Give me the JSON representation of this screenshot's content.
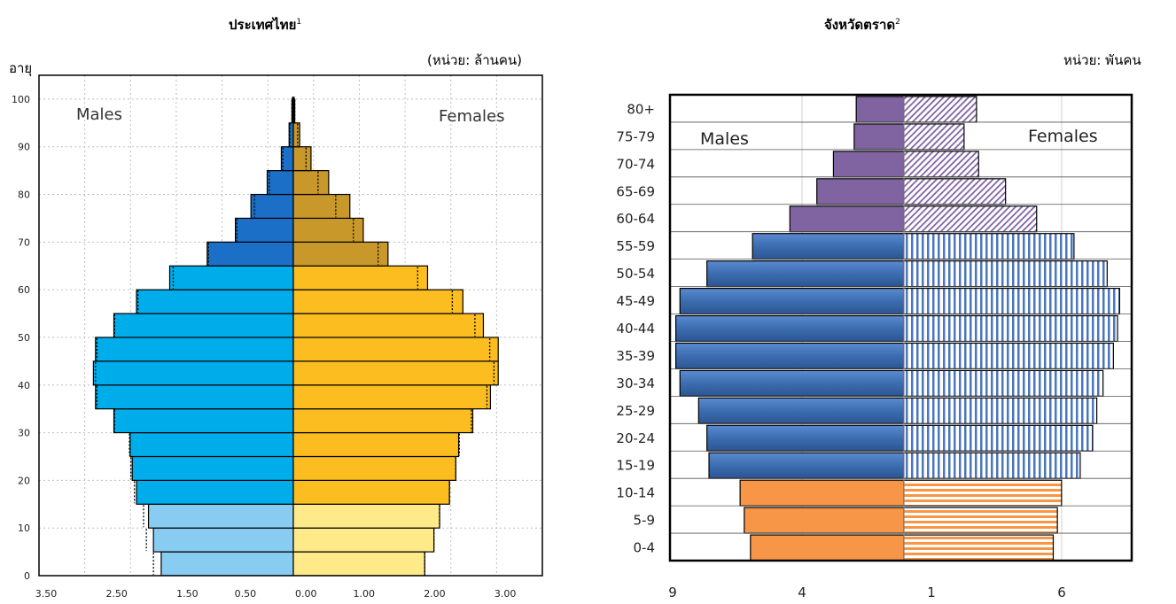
{
  "chart_data": [
    {
      "type": "bar",
      "orientation": "horizontal-pyramid",
      "title": "ประเทศไทย",
      "title_sup": "1",
      "unit_label": "(หน่วย: ล้านคน)",
      "ylabel": "อายุ",
      "y_ticks": [
        "0",
        "10",
        "20",
        "30",
        "40",
        "50",
        "60",
        "70",
        "80",
        "90",
        "100"
      ],
      "x_tick_labels": [
        "3.50",
        "2.50",
        "1.50",
        "0.50",
        "0.00",
        "1.00",
        "2.00",
        "3.00"
      ],
      "left_label": "Males",
      "right_label": "Females",
      "grid": true,
      "bin_width_years": 5,
      "age_bins_start": [
        0,
        5,
        10,
        15,
        20,
        25,
        30,
        35,
        40,
        45,
        50,
        55,
        60,
        65,
        70,
        75,
        80,
        85,
        90,
        95
      ],
      "males": [
        1.87,
        1.98,
        2.05,
        2.22,
        2.28,
        2.31,
        2.54,
        2.8,
        2.83,
        2.8,
        2.54,
        2.22,
        1.75,
        1.22,
        0.82,
        0.6,
        0.37,
        0.17,
        0.06,
        0.02
      ],
      "females": [
        1.86,
        1.99,
        2.07,
        2.21,
        2.3,
        2.34,
        2.54,
        2.79,
        2.9,
        2.9,
        2.69,
        2.4,
        1.9,
        1.34,
        0.99,
        0.8,
        0.5,
        0.25,
        0.09,
        0.02
      ],
      "males_dotted": [
        1.98,
        2.08,
        2.12,
        2.25,
        2.3,
        2.32,
        2.53,
        2.78,
        2.8,
        2.78,
        2.53,
        2.2,
        1.7,
        1.2,
        0.8,
        0.55,
        0.34,
        0.15,
        0.05,
        0.02
      ],
      "females_dotted": [
        1.86,
        1.99,
        2.07,
        2.21,
        2.3,
        2.35,
        2.52,
        2.74,
        2.84,
        2.78,
        2.57,
        2.25,
        1.76,
        1.2,
        0.85,
        0.6,
        0.35,
        0.18,
        0.06,
        0.02
      ],
      "colors": {
        "males": [
          "#88ccf2",
          "#88ccf2",
          "#88ccf2",
          "#00adeb",
          "#00adeb",
          "#00adeb",
          "#00adeb",
          "#00adeb",
          "#00adeb",
          "#00adeb",
          "#00adeb",
          "#00adeb",
          "#00adeb",
          "#1c6fc6",
          "#1c6fc6",
          "#1c6fc6",
          "#1c6fc6",
          "#1c6fc6",
          "#1c6fc6",
          "#1c6fc6"
        ],
        "females": [
          "#ffea8a",
          "#ffea8a",
          "#ffea8a",
          "#fbbd20",
          "#fbbd20",
          "#fbbd20",
          "#fbbd20",
          "#fbbd20",
          "#fbbd20",
          "#fbbd20",
          "#fbbd20",
          "#fbbd20",
          "#fbbd20",
          "#c9982a",
          "#c9982a",
          "#c9982a",
          "#c9982a",
          "#c9982a",
          "#c9982a",
          "#c9982a"
        ]
      }
    },
    {
      "type": "bar",
      "orientation": "horizontal-pyramid",
      "title": "จังหวัดตราด",
      "title_sup": "2",
      "unit_label": "หน่วย: พันคน",
      "categories": [
        "0-4",
        "5-9",
        "10-14",
        "15-19",
        "20-24",
        "25-29",
        "30-34",
        "35-39",
        "40-44",
        "45-49",
        "50-54",
        "55-59",
        "60-64",
        "65-69",
        "70-74",
        "75-79",
        "80+"
      ],
      "x_tick_labels": [
        "9",
        "4",
        "1",
        "6"
      ],
      "left_label": "Males",
      "right_label": "Females",
      "grid": true,
      "males": [
        7.4,
        7.7,
        7.9,
        9.4,
        9.5,
        9.9,
        10.8,
        11.0,
        11.0,
        10.8,
        9.5,
        7.3,
        5.5,
        4.2,
        3.4,
        2.4,
        2.3
      ],
      "females": [
        7.2,
        7.4,
        7.6,
        8.5,
        9.1,
        9.3,
        9.6,
        10.1,
        10.3,
        10.4,
        9.8,
        8.2,
        6.4,
        4.9,
        3.6,
        2.9,
        3.5
      ],
      "colors": {
        "males": [
          "#f79646",
          "#f79646",
          "#f79646",
          "#3c6db0",
          "#3c6db0",
          "#3c6db0",
          "#3c6db0",
          "#3c6db0",
          "#3c6db0",
          "#3c6db0",
          "#3c6db0",
          "#3c6db0",
          "#8064a2",
          "#8064a2",
          "#8064a2",
          "#8064a2",
          "#8064a2"
        ],
        "females_pattern": [
          "horizontal-orange",
          "horizontal-orange",
          "horizontal-orange",
          "vertical-blue",
          "vertical-blue",
          "vertical-blue",
          "vertical-blue",
          "vertical-blue",
          "vertical-blue",
          "vertical-blue",
          "vertical-blue",
          "vertical-blue",
          "diagonal-purple",
          "diagonal-purple",
          "diagonal-purple",
          "diagonal-purple",
          "diagonal-purple"
        ]
      }
    }
  ]
}
